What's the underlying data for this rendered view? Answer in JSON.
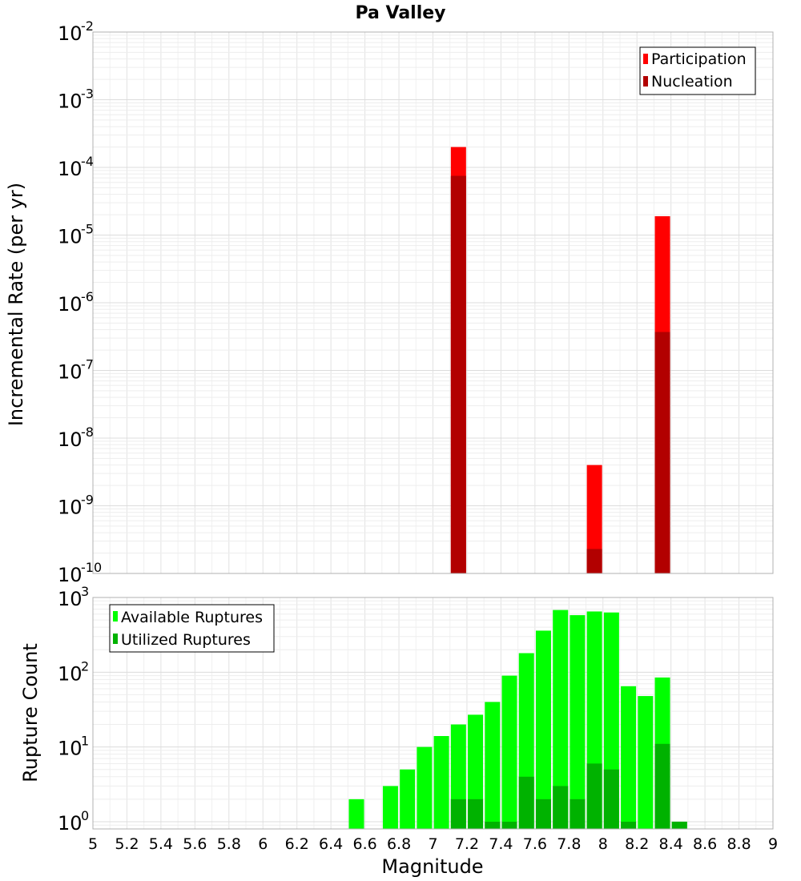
{
  "chart_data": [
    {
      "type": "bar",
      "title": "Pa Valley",
      "ylabel": "Incremental Rate (per yr)",
      "y_scale": "log",
      "ylim": [
        1e-10,
        0.01
      ],
      "xlim": [
        5,
        9
      ],
      "legend_position": "top-right",
      "y_ticks": [
        {
          "base": "10",
          "exp": "-10"
        },
        {
          "base": "10",
          "exp": "-9"
        },
        {
          "base": "10",
          "exp": "-8"
        },
        {
          "base": "10",
          "exp": "-7"
        },
        {
          "base": "10",
          "exp": "-6"
        },
        {
          "base": "10",
          "exp": "-5"
        },
        {
          "base": "10",
          "exp": "-4"
        },
        {
          "base": "10",
          "exp": "-3"
        },
        {
          "base": "10",
          "exp": "-2"
        }
      ],
      "series": [
        {
          "name": "Participation",
          "color": "#ff0000",
          "x": [
            7.15,
            7.95,
            8.35
          ],
          "values": [
            0.0002,
            4e-09,
            1.9e-05
          ]
        },
        {
          "name": "Nucleation",
          "color": "#b20000",
          "x": [
            7.15,
            7.95,
            8.35
          ],
          "values": [
            7.5e-05,
            2.3e-10,
            3.7e-07
          ]
        }
      ]
    },
    {
      "type": "bar",
      "xlabel": "Magnitude",
      "ylabel": "Rupture Count",
      "y_scale": "log",
      "ylim": [
        0.8,
        1000
      ],
      "xlim": [
        5,
        9
      ],
      "legend_position": "top-left",
      "x_ticks": [
        "5",
        "5.2",
        "5.4",
        "5.6",
        "5.8",
        "6",
        "6.2",
        "6.4",
        "6.6",
        "6.8",
        "7",
        "7.2",
        "7.4",
        "7.6",
        "7.8",
        "8",
        "8.2",
        "8.4",
        "8.6",
        "8.8",
        "9"
      ],
      "y_ticks": [
        {
          "base": "10",
          "exp": "0"
        },
        {
          "base": "10",
          "exp": "1"
        },
        {
          "base": "10",
          "exp": "2"
        },
        {
          "base": "10",
          "exp": "3"
        }
      ],
      "series": [
        {
          "name": "Available Ruptures",
          "color": "#00ff00",
          "x": [
            6.55,
            6.75,
            6.85,
            6.95,
            7.05,
            7.15,
            7.25,
            7.35,
            7.45,
            7.55,
            7.65,
            7.75,
            7.85,
            7.95,
            8.05,
            8.15,
            8.25,
            8.35,
            8.45
          ],
          "values": [
            2,
            3,
            5,
            10,
            14,
            20,
            27,
            40,
            90,
            180,
            360,
            680,
            580,
            650,
            630,
            65,
            48,
            85,
            1
          ]
        },
        {
          "name": "Utilized Ruptures",
          "color": "#00b200",
          "x": [
            7.15,
            7.25,
            7.35,
            7.45,
            7.55,
            7.65,
            7.75,
            7.85,
            7.95,
            8.05,
            8.15,
            8.35,
            8.45
          ],
          "values": [
            2,
            2,
            1,
            1,
            4,
            2,
            3,
            2,
            6,
            5,
            1,
            11,
            1
          ]
        }
      ]
    }
  ]
}
